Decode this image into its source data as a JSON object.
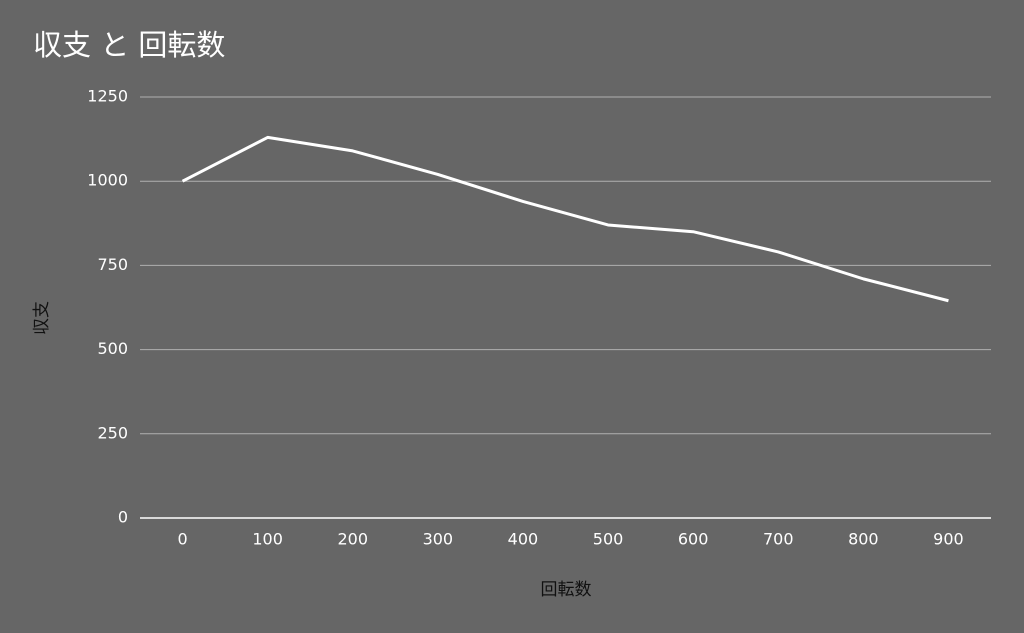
{
  "chart_data": {
    "type": "line",
    "title": "収支 と 回転数",
    "x_label": "回転数",
    "y_label": "収支",
    "categories": [
      "0",
      "100",
      "200",
      "300",
      "400",
      "500",
      "600",
      "700",
      "800",
      "900"
    ],
    "values": [
      1000,
      1130,
      1090,
      1020,
      940,
      870,
      850,
      790,
      710,
      645
    ],
    "color": "#ffffff",
    "ylim": [
      0,
      1250
    ],
    "yticks": [
      0,
      250,
      500,
      750,
      1000,
      1250
    ],
    "grid": true
  }
}
